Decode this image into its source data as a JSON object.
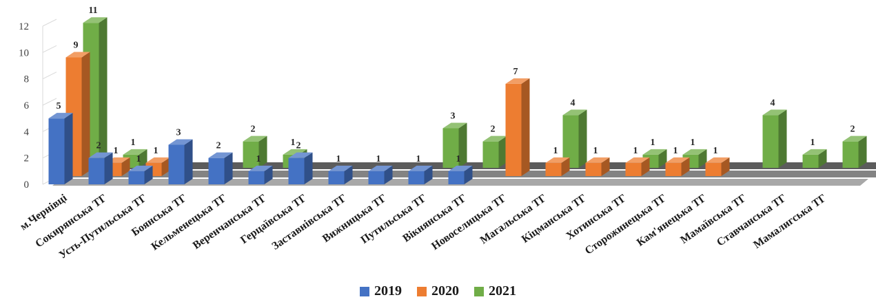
{
  "chart_data": {
    "type": "bar",
    "title": "",
    "xlabel": "",
    "ylabel": "",
    "ylim": [
      0,
      12
    ],
    "y_ticks": [
      0,
      2,
      4,
      6,
      8,
      10,
      12
    ],
    "grid": false,
    "legend_position": "bottom",
    "categories": [
      "м.Чернівці",
      "Сокирянська ТГ",
      "Усть-Путильська ТГ",
      "Боянська ТГ",
      "Кельменецька ТГ",
      "Веренчанська ТГ",
      "Герцаївська ТГ",
      "Заставнівська ТГ",
      "Вижницька ТГ",
      "Путильська ТГ",
      "Вікнянська ТГ",
      "Новоселицька ТГ",
      "Магальська ТГ",
      "Кіцманська ТГ",
      "Хотинська ТГ",
      "Сторожинецька ТГ",
      "Кам'янецька ТГ",
      "Мамаївська ТГ",
      "Ставчанська ТГ",
      "Мамалигська ТГ"
    ],
    "series": [
      {
        "name": "2019",
        "color": "#4472C4",
        "values": [
          5,
          2,
          1,
          3,
          2,
          1,
          2,
          1,
          1,
          1,
          1,
          null,
          null,
          null,
          null,
          null,
          null,
          null,
          null,
          null
        ]
      },
      {
        "name": "2020",
        "color": "#ED7D31",
        "values": [
          9,
          1,
          1,
          null,
          null,
          null,
          null,
          null,
          null,
          null,
          null,
          7,
          1,
          1,
          1,
          1,
          1,
          null,
          null,
          null
        ]
      },
      {
        "name": "2021",
        "color": "#70AD47",
        "values": [
          11,
          1,
          null,
          null,
          2,
          1,
          null,
          null,
          null,
          3,
          2,
          null,
          4,
          null,
          1,
          1,
          null,
          4,
          1,
          2
        ]
      }
    ]
  }
}
